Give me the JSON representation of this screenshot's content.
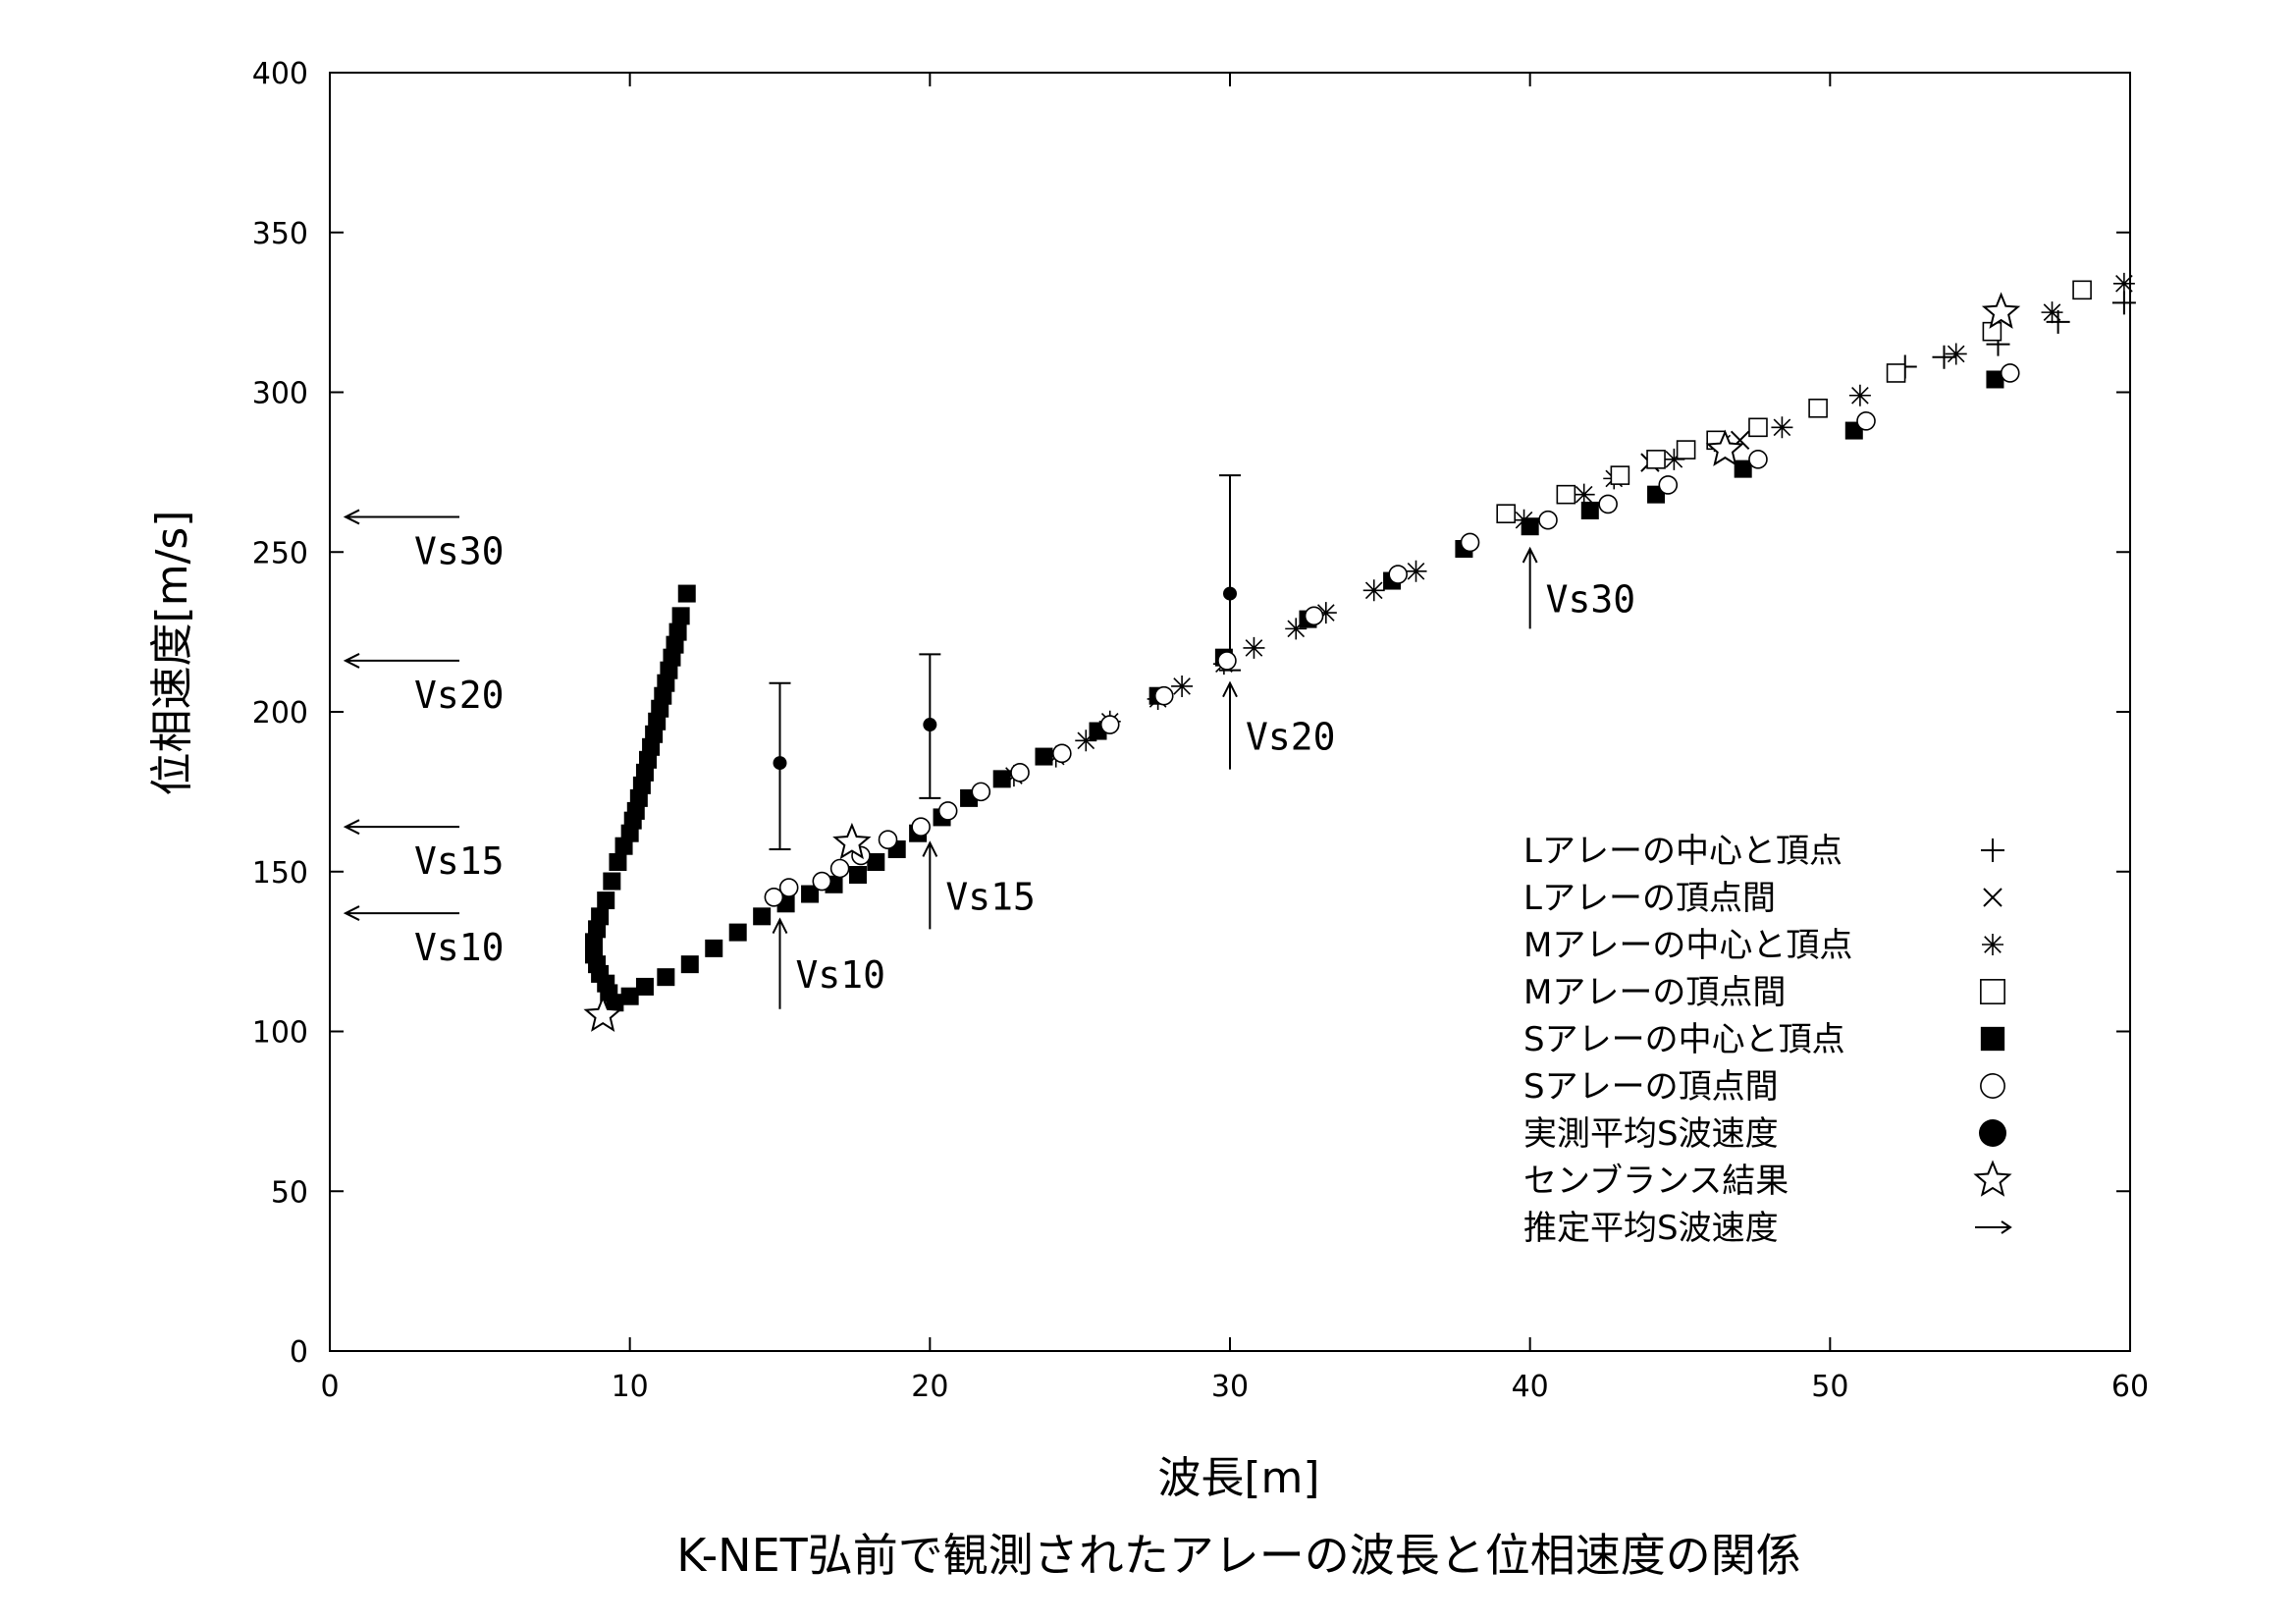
{
  "caption": "K-NET弘前で観測されたアレーの波長と位相速度の関係",
  "chart_data": {
    "type": "scatter",
    "xlabel": "波長[m]",
    "ylabel": "位相速度[m/s]",
    "xlim": [
      0,
      60
    ],
    "ylim": [
      0,
      400
    ],
    "xticks": [
      0,
      10,
      20,
      30,
      40,
      50,
      60
    ],
    "yticks": [
      0,
      50,
      100,
      150,
      200,
      250,
      300,
      350,
      400
    ],
    "legend_position": "lower-right",
    "legend": [
      {
        "label": "Lアレーの中心と頂点",
        "marker": "plus"
      },
      {
        "label": "Lアレーの頂点間",
        "marker": "cross"
      },
      {
        "label": "Mアレーの中心と頂点",
        "marker": "asterisk"
      },
      {
        "label": "Mアレーの頂点間",
        "marker": "open-square"
      },
      {
        "label": "Sアレーの中心と頂点",
        "marker": "filled-square"
      },
      {
        "label": "Sアレーの頂点間",
        "marker": "open-circle"
      },
      {
        "label": "実測平均S波速度",
        "marker": "filled-circle"
      },
      {
        "label": "センブランス結果",
        "marker": "star"
      },
      {
        "label": "推定平均S波速度",
        "marker": "arrow"
      }
    ],
    "series": [
      {
        "marker": "plus",
        "points": [
          [
            52.5,
            308
          ],
          [
            53.8,
            311
          ],
          [
            55.6,
            315
          ],
          [
            57.6,
            322
          ],
          [
            59.8,
            328
          ]
        ]
      },
      {
        "marker": "cross",
        "points": [
          [
            44.0,
            278
          ],
          [
            47.0,
            285
          ]
        ]
      },
      {
        "marker": "asterisk",
        "points": [
          [
            22.8,
            180
          ],
          [
            24.2,
            186
          ],
          [
            25.2,
            191
          ],
          [
            26.0,
            197
          ],
          [
            27.6,
            204
          ],
          [
            28.4,
            208
          ],
          [
            29.8,
            215
          ],
          [
            30.8,
            220
          ],
          [
            32.2,
            226
          ],
          [
            33.2,
            231
          ],
          [
            34.8,
            238
          ],
          [
            36.2,
            244
          ],
          [
            39.8,
            260
          ],
          [
            41.8,
            268
          ],
          [
            42.8,
            273
          ],
          [
            44.8,
            279
          ],
          [
            46.4,
            284
          ],
          [
            48.4,
            289
          ],
          [
            51.0,
            299
          ],
          [
            54.2,
            312
          ],
          [
            57.4,
            325
          ],
          [
            59.8,
            334
          ]
        ]
      },
      {
        "marker": "open-square",
        "points": [
          [
            39.2,
            262
          ],
          [
            41.2,
            268
          ],
          [
            43.0,
            274
          ],
          [
            44.2,
            279
          ],
          [
            45.2,
            282
          ],
          [
            46.2,
            285
          ],
          [
            47.6,
            289
          ],
          [
            49.6,
            295
          ],
          [
            52.2,
            306
          ],
          [
            55.4,
            319
          ],
          [
            58.4,
            332
          ]
        ]
      },
      {
        "marker": "filled-square",
        "points": [
          [
            9.5,
            109
          ],
          [
            10.0,
            111
          ],
          [
            10.5,
            114
          ],
          [
            11.2,
            117
          ],
          [
            12.0,
            121
          ],
          [
            12.8,
            126
          ],
          [
            13.6,
            131
          ],
          [
            14.4,
            136
          ],
          [
            15.2,
            140
          ],
          [
            16.0,
            143
          ],
          [
            16.8,
            146
          ],
          [
            17.6,
            149
          ],
          [
            18.2,
            153
          ],
          [
            18.9,
            157
          ],
          [
            19.6,
            162
          ],
          [
            20.4,
            167
          ],
          [
            21.3,
            173
          ],
          [
            22.4,
            179
          ],
          [
            23.8,
            186
          ],
          [
            25.6,
            194
          ],
          [
            27.6,
            205
          ],
          [
            29.8,
            217
          ],
          [
            32.6,
            229
          ],
          [
            35.4,
            241
          ],
          [
            37.8,
            251
          ],
          [
            40.0,
            258
          ],
          [
            42.0,
            263
          ],
          [
            44.2,
            268
          ],
          [
            47.1,
            276
          ],
          [
            50.8,
            288
          ],
          [
            55.5,
            304
          ],
          [
            11.9,
            237
          ],
          [
            11.7,
            230
          ],
          [
            11.6,
            225
          ],
          [
            11.5,
            221
          ],
          [
            11.4,
            217
          ],
          [
            11.3,
            213
          ],
          [
            11.2,
            209
          ],
          [
            11.1,
            205
          ],
          [
            11.0,
            201
          ],
          [
            10.9,
            197
          ],
          [
            10.8,
            193
          ],
          [
            10.7,
            189
          ],
          [
            10.6,
            185
          ],
          [
            10.5,
            181
          ],
          [
            10.4,
            177
          ],
          [
            10.3,
            173
          ],
          [
            10.2,
            169
          ],
          [
            10.1,
            166
          ],
          [
            10.0,
            162
          ],
          [
            9.8,
            158
          ],
          [
            9.6,
            153
          ],
          [
            9.4,
            147
          ],
          [
            9.2,
            141
          ],
          [
            9.0,
            136
          ],
          [
            8.9,
            132
          ],
          [
            8.8,
            128
          ],
          [
            8.8,
            124
          ],
          [
            8.9,
            121
          ],
          [
            9.0,
            118
          ],
          [
            9.2,
            115
          ],
          [
            9.3,
            112
          ]
        ]
      },
      {
        "marker": "open-circle",
        "points": [
          [
            14.8,
            142
          ],
          [
            15.3,
            145
          ],
          [
            16.4,
            147
          ],
          [
            17.0,
            151
          ],
          [
            17.7,
            155
          ],
          [
            18.6,
            160
          ],
          [
            19.7,
            164
          ],
          [
            20.6,
            169
          ],
          [
            21.7,
            175
          ],
          [
            23.0,
            181
          ],
          [
            24.4,
            187
          ],
          [
            26.0,
            196
          ],
          [
            27.8,
            205
          ],
          [
            29.9,
            216
          ],
          [
            32.8,
            230
          ],
          [
            35.6,
            243
          ],
          [
            38.0,
            253
          ],
          [
            40.6,
            260
          ],
          [
            42.6,
            265
          ],
          [
            44.6,
            271
          ],
          [
            47.6,
            279
          ],
          [
            51.2,
            291
          ],
          [
            56.0,
            306
          ]
        ]
      },
      {
        "marker": "filled-circle",
        "points": [
          [
            15,
            184
          ],
          [
            20,
            196
          ],
          [
            30,
            237
          ]
        ]
      },
      {
        "marker": "star",
        "points": [
          [
            9.1,
            105
          ],
          [
            17.4,
            159
          ],
          [
            46.5,
            282
          ],
          [
            55.7,
            325
          ]
        ]
      }
    ],
    "error_bars": [
      {
        "x": 15,
        "low": 157,
        "high": 209
      },
      {
        "x": 20,
        "low": 173,
        "high": 218
      },
      {
        "x": 30,
        "low": 213,
        "high": 274
      }
    ],
    "horizontal_arrows": [
      {
        "label": "Vs30",
        "y": 261
      },
      {
        "label": "Vs20",
        "y": 216
      },
      {
        "label": "Vs15",
        "y": 164
      },
      {
        "label": "Vs10",
        "y": 137
      }
    ],
    "vertical_arrows": [
      {
        "label": "Vs10",
        "x": 15,
        "y_from": 107,
        "y_to": 135
      },
      {
        "label": "Vs15",
        "x": 20,
        "y_from": 132,
        "y_to": 159
      },
      {
        "label": "Vs20",
        "x": 30,
        "y_from": 182,
        "y_to": 209
      },
      {
        "label": "Vs30",
        "x": 40,
        "y_from": 226,
        "y_to": 251
      }
    ]
  }
}
